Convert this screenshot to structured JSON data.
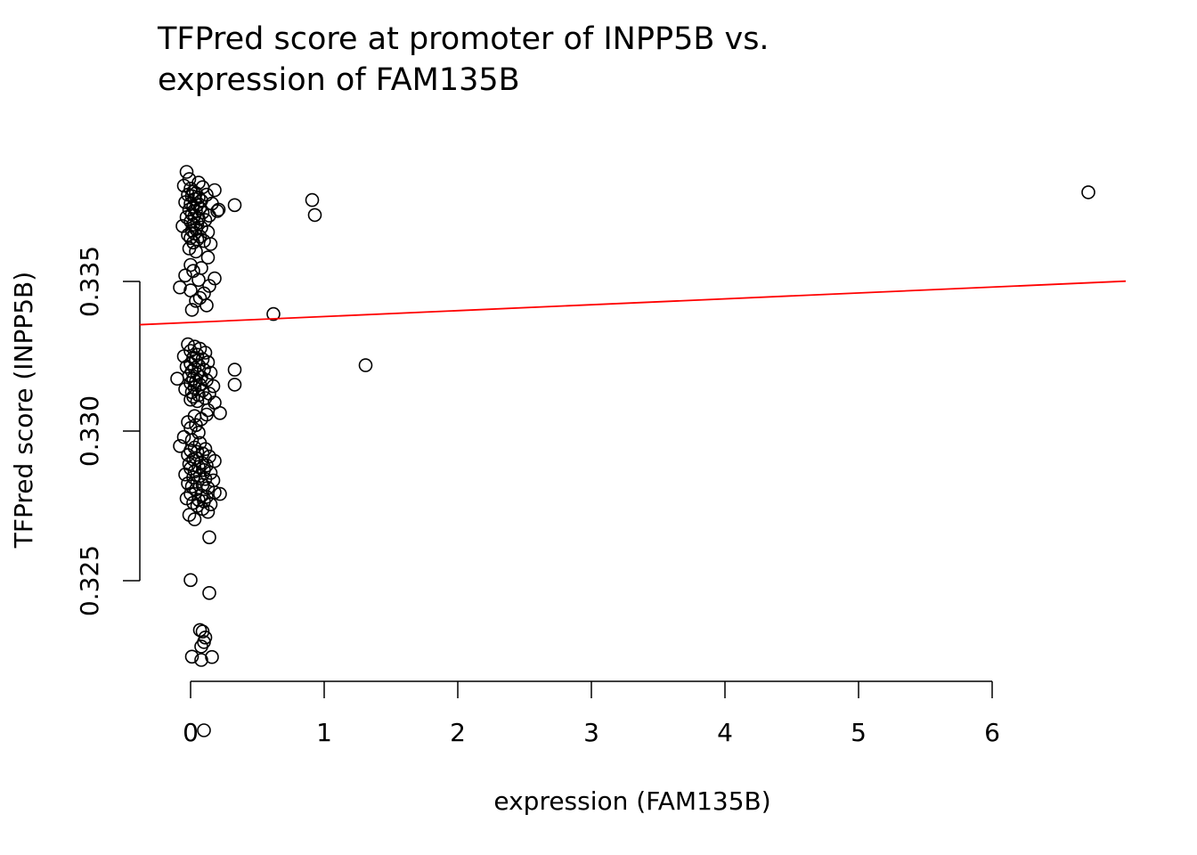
{
  "chart_data": {
    "type": "scatter",
    "title": [
      "TFPred score at promoter of INPP5B vs.",
      "expression of FAM135B"
    ],
    "xlabel": "expression (FAM135B)",
    "ylabel": "TFPred score (INPP5B)",
    "xlim": [
      -0.38,
      7.0
    ],
    "ylim": [
      0.3207,
      0.3404
    ],
    "x_ticks": [
      0,
      1,
      2,
      3,
      4,
      5,
      6
    ],
    "x_tick_labels": [
      "0",
      "1",
      "2",
      "3",
      "4",
      "5",
      "6"
    ],
    "y_ticks": [
      0.325,
      0.33,
      0.335
    ],
    "y_tick_labels": [
      "0.325",
      "0.330",
      "0.335"
    ],
    "grid": false,
    "point_style": "open-circle",
    "point_color": "#000000",
    "trend_line": {
      "intercept": 0.33363,
      "slope": 0.000197,
      "color": "#ff0000"
    },
    "points": [
      [
        -0.03,
        0.33866
      ],
      [
        -0.01,
        0.33842
      ],
      [
        -0.05,
        0.3382
      ],
      [
        0.0,
        0.3381
      ],
      [
        0.02,
        0.338
      ],
      [
        0.04,
        0.33795
      ],
      [
        -0.02,
        0.3379
      ],
      [
        0.01,
        0.33785
      ],
      [
        0.06,
        0.3378
      ],
      [
        0.03,
        0.33775
      ],
      [
        0.08,
        0.3377
      ],
      [
        -0.04,
        0.33765
      ],
      [
        0.0,
        0.3376
      ],
      [
        0.05,
        0.33755
      ],
      [
        0.02,
        0.3375
      ],
      [
        0.07,
        0.33745
      ],
      [
        -0.01,
        0.3374
      ],
      [
        0.04,
        0.33735
      ],
      [
        0.09,
        0.3373
      ],
      [
        0.01,
        0.33725
      ],
      [
        0.03,
        0.3372
      ],
      [
        -0.03,
        0.33715
      ],
      [
        0.06,
        0.3371
      ],
      [
        0.11,
        0.33705
      ],
      [
        0.0,
        0.337
      ],
      [
        0.05,
        0.33695
      ],
      [
        0.02,
        0.3369
      ],
      [
        -0.06,
        0.33685
      ],
      [
        0.08,
        0.3368
      ],
      [
        0.04,
        0.33675
      ],
      [
        0.01,
        0.3367
      ],
      [
        0.13,
        0.33665
      ],
      [
        0.03,
        0.3366
      ],
      [
        -0.02,
        0.33655
      ],
      [
        0.07,
        0.3365
      ],
      [
        0.0,
        0.33645
      ],
      [
        0.05,
        0.3364
      ],
      [
        0.1,
        0.33635
      ],
      [
        0.02,
        0.3363
      ],
      [
        0.15,
        0.33625
      ],
      [
        0.18,
        0.33805
      ],
      [
        0.12,
        0.3379
      ],
      [
        0.16,
        0.3376
      ],
      [
        0.2,
        0.33735
      ],
      [
        0.14,
        0.3372
      ],
      [
        0.33,
        0.33755
      ],
      [
        0.21,
        0.3374
      ],
      [
        0.09,
        0.33815
      ],
      [
        0.06,
        0.3383
      ],
      [
        -0.01,
        0.3361
      ],
      [
        0.04,
        0.336
      ],
      [
        0.13,
        0.3358
      ],
      [
        0.0,
        0.33555
      ],
      [
        0.08,
        0.33545
      ],
      [
        0.02,
        0.33535
      ],
      [
        -0.04,
        0.3352
      ],
      [
        0.06,
        0.33505
      ],
      [
        0.14,
        0.33485
      ],
      [
        0.0,
        0.3347
      ],
      [
        0.1,
        0.3346
      ],
      [
        0.04,
        0.33435
      ],
      [
        0.18,
        0.3351
      ],
      [
        -0.08,
        0.3348
      ],
      [
        0.01,
        0.33405
      ],
      [
        0.07,
        0.33445
      ],
      [
        0.12,
        0.3342
      ],
      [
        0.91,
        0.33772
      ],
      [
        0.93,
        0.33722
      ],
      [
        0.62,
        0.33391
      ],
      [
        1.31,
        0.3322
      ],
      [
        6.72,
        0.33798
      ],
      [
        -0.02,
        0.3329
      ],
      [
        0.03,
        0.33282
      ],
      [
        0.07,
        0.33275
      ],
      [
        0.0,
        0.33268
      ],
      [
        0.11,
        0.33262
      ],
      [
        0.05,
        0.33255
      ],
      [
        -0.05,
        0.3325
      ],
      [
        0.02,
        0.33245
      ],
      [
        0.09,
        0.3324
      ],
      [
        0.04,
        0.33235
      ],
      [
        0.13,
        0.3323
      ],
      [
        0.0,
        0.33225
      ],
      [
        0.06,
        0.3322
      ],
      [
        -0.03,
        0.33215
      ],
      [
        0.03,
        0.3321
      ],
      [
        0.1,
        0.33205
      ],
      [
        0.01,
        0.332
      ],
      [
        0.15,
        0.33195
      ],
      [
        0.05,
        0.3319
      ],
      [
        -0.01,
        0.33185
      ],
      [
        0.08,
        0.3318
      ],
      [
        0.02,
        0.33175
      ],
      [
        0.12,
        0.3317
      ],
      [
        0.04,
        0.33165
      ],
      [
        0.0,
        0.3316
      ],
      [
        0.07,
        0.33155
      ],
      [
        0.17,
        0.3315
      ],
      [
        0.03,
        0.33145
      ],
      [
        -0.04,
        0.3314
      ],
      [
        0.09,
        0.33135
      ],
      [
        0.01,
        0.3313
      ],
      [
        0.14,
        0.33125
      ],
      [
        0.06,
        0.3312
      ],
      [
        0.02,
        0.33115
      ],
      [
        0.11,
        0.3311
      ],
      [
        0.0,
        0.33105
      ],
      [
        0.05,
        0.331
      ],
      [
        -0.1,
        0.33175
      ],
      [
        0.33,
        0.33205
      ],
      [
        0.33,
        0.33155
      ],
      [
        0.18,
        0.33095
      ],
      [
        0.22,
        0.3306
      ],
      [
        0.12,
        0.33055
      ],
      [
        0.03,
        0.3305
      ],
      [
        0.08,
        0.3304
      ],
      [
        -0.02,
        0.3303
      ],
      [
        0.04,
        0.3302
      ],
      [
        0.0,
        0.3301
      ],
      [
        0.13,
        0.3307
      ],
      [
        0.06,
        0.32995
      ],
      [
        -0.05,
        0.3298
      ],
      [
        0.01,
        0.3297
      ],
      [
        0.07,
        0.3296
      ],
      [
        -0.08,
        0.3295
      ],
      [
        0.03,
        0.32945
      ],
      [
        0.11,
        0.3294
      ],
      [
        0.0,
        0.32935
      ],
      [
        0.05,
        0.3293
      ],
      [
        0.09,
        0.32925
      ],
      [
        -0.02,
        0.3292
      ],
      [
        0.14,
        0.32915
      ],
      [
        0.04,
        0.3291
      ],
      [
        0.02,
        0.32905
      ],
      [
        0.18,
        0.329
      ],
      [
        0.08,
        0.32895
      ],
      [
        -0.01,
        0.3289
      ],
      [
        0.12,
        0.32885
      ],
      [
        0.06,
        0.3288
      ],
      [
        0.0,
        0.32875
      ],
      [
        0.1,
        0.3287
      ],
      [
        0.03,
        0.32865
      ],
      [
        0.15,
        0.3286
      ],
      [
        -0.04,
        0.32855
      ],
      [
        0.07,
        0.3285
      ],
      [
        0.02,
        0.32845
      ],
      [
        0.11,
        0.3284
      ],
      [
        0.17,
        0.32835
      ],
      [
        0.05,
        0.3283
      ],
      [
        -0.02,
        0.32825
      ],
      [
        0.09,
        0.3282
      ],
      [
        0.01,
        0.32815
      ],
      [
        0.13,
        0.3281
      ],
      [
        0.04,
        0.32805
      ],
      [
        0.18,
        0.32795
      ],
      [
        0.0,
        0.3279
      ],
      [
        0.08,
        0.32785
      ],
      [
        0.12,
        0.3278
      ],
      [
        -0.03,
        0.32775
      ],
      [
        0.06,
        0.3277
      ],
      [
        0.1,
        0.32765
      ],
      [
        0.02,
        0.3276
      ],
      [
        0.15,
        0.32755
      ],
      [
        0.05,
        0.3275
      ],
      [
        0.22,
        0.3279
      ],
      [
        0.09,
        0.3274
      ],
      [
        0.13,
        0.3273
      ],
      [
        -0.01,
        0.3272
      ],
      [
        0.03,
        0.32705
      ],
      [
        0.1,
        0.32
      ],
      [
        0.14,
        0.32645
      ],
      [
        0.0,
        0.32502
      ],
      [
        0.14,
        0.32459
      ],
      [
        0.07,
        0.32335
      ],
      [
        0.09,
        0.3233
      ],
      [
        0.11,
        0.3231
      ],
      [
        0.1,
        0.32295
      ],
      [
        0.08,
        0.3228
      ],
      [
        0.01,
        0.32246
      ],
      [
        0.08,
        0.32235
      ],
      [
        0.16,
        0.32245
      ]
    ]
  }
}
